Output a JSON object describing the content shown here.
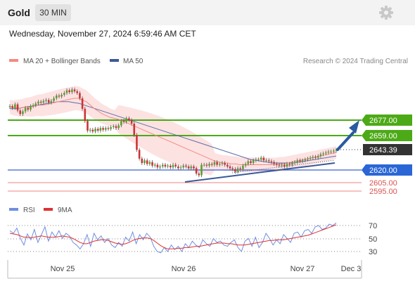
{
  "header": {
    "instrument": "Gold",
    "interval": "30 MIN",
    "datetime": "Wednesday, November 27, 2024 6:59:46 AM CET",
    "settings_icon": "gear-icon"
  },
  "legend": {
    "ma20": "MA 20 + Bollinger Bands",
    "ma50": "MA 50",
    "credit": "Research © 2024 Trading Central",
    "rsi": "RSI",
    "ma9": "9MA"
  },
  "colors": {
    "ma20": "#f28b82",
    "band_fill": "#fde2e2",
    "ma50": "#5b6fa8",
    "resistance": "#4caa16",
    "support_blue": "#3a5fcd",
    "support_red": "#f08080",
    "current": "#333333",
    "arrow": "#2a5aa0",
    "rsi": "#6f8fe0",
    "ma9": "#e03030"
  },
  "chart_data": [
    {
      "type": "candlestick",
      "title": "Gold 30 MIN",
      "ylim": [
        2588,
        2695
      ],
      "x_labels": [
        "Nov 25",
        "Nov 26",
        "Nov 27",
        "Dec 3"
      ],
      "levels": [
        {
          "value": 2677.0,
          "label": "2677.00",
          "kind": "resistance"
        },
        {
          "value": 2659.0,
          "label": "2659.00",
          "kind": "resistance"
        },
        {
          "value": 2643.39,
          "label": "2643.39",
          "kind": "current"
        },
        {
          "value": 2620.0,
          "label": "2620.00",
          "kind": "support"
        },
        {
          "value": 2605.0,
          "label": "2605.00",
          "kind": "support_minor"
        },
        {
          "value": 2595.0,
          "label": "2595.00",
          "kind": "support_minor"
        }
      ],
      "close": [
        2693,
        2691,
        2695,
        2688,
        2684,
        2687,
        2691,
        2689,
        2693,
        2694,
        2696,
        2698,
        2697,
        2699,
        2700,
        2697,
        2699,
        2702,
        2705,
        2704,
        2706,
        2708,
        2711,
        2709,
        2712,
        2710,
        2708,
        2702,
        2690,
        2676,
        2665,
        2666,
        2664,
        2667,
        2665,
        2668,
        2666,
        2668,
        2667,
        2669,
        2670,
        2668,
        2671,
        2676,
        2675,
        2679,
        2677,
        2673,
        2660,
        2643,
        2633,
        2628,
        2631,
        2627,
        2629,
        2625,
        2626,
        2623,
        2624,
        2626,
        2624,
        2625,
        2623,
        2626,
        2624,
        2622,
        2623,
        2625,
        2624,
        2622,
        2624,
        2622,
        2616,
        2614,
        2626,
        2626,
        2625,
        2627,
        2626,
        2629,
        2626,
        2627,
        2628,
        2626,
        2624,
        2622,
        2621,
        2618,
        2622,
        2621,
        2625,
        2627,
        2630,
        2628,
        2631,
        2632,
        2632,
        2634,
        2631,
        2631,
        2630,
        2629,
        2627,
        2626,
        2625,
        2626,
        2624,
        2627,
        2626,
        2628,
        2629,
        2631,
        2630,
        2631,
        2632,
        2633,
        2634,
        2635,
        2634,
        2636,
        2638,
        2639,
        2640,
        2641,
        2641,
        2642,
        2643
      ],
      "ma20": [
        2692,
        2691,
        2691,
        2691,
        2692,
        2692,
        2693,
        2694,
        2694,
        2695,
        2696,
        2697,
        2698,
        2699,
        2700,
        2701,
        2702,
        2702,
        2700,
        2698,
        2694,
        2690,
        2687,
        2684,
        2682,
        2680,
        2679,
        2678,
        2676,
        2674,
        2672,
        2670,
        2668,
        2666,
        2664,
        2662,
        2660,
        2658,
        2656,
        2654,
        2652,
        2650,
        2648,
        2646,
        2644,
        2642,
        2640,
        2638,
        2636,
        2634,
        2632,
        2630,
        2629,
        2628,
        2628,
        2627,
        2627,
        2626,
        2626,
        2626,
        2626,
        2626,
        2626,
        2626,
        2626,
        2626,
        2626,
        2627,
        2627,
        2628,
        2629,
        2630,
        2631,
        2632,
        2633,
        2634,
        2635,
        2636,
        2637,
        2638,
        2639,
        2640
      ],
      "ma50": [
        2690,
        2690,
        2691,
        2692,
        2693,
        2694,
        2695,
        2696,
        2697,
        2698,
        2698,
        2698,
        2697,
        2696,
        2694,
        2692,
        2690,
        2688,
        2686,
        2684,
        2682,
        2680,
        2678,
        2676,
        2674,
        2672,
        2670,
        2668,
        2666,
        2664,
        2662,
        2660,
        2658,
        2656,
        2654,
        2652,
        2650,
        2648,
        2646,
        2644,
        2642,
        2640,
        2638,
        2636,
        2634,
        2632,
        2631,
        2630,
        2629,
        2628,
        2628,
        2628,
        2628,
        2628,
        2629,
        2630,
        2631,
        2632,
        2633,
        2634,
        2635,
        2636
      ]
    },
    {
      "type": "line",
      "title": "RSI",
      "ylim": [
        20,
        80
      ],
      "ticks": [
        30,
        50,
        70
      ],
      "series": [
        {
          "name": "RSI",
          "values": [
            62,
            58,
            66,
            50,
            40,
            57,
            48,
            64,
            44,
            56,
            68,
            46,
            60,
            52,
            62,
            50,
            58,
            54,
            44,
            40,
            34,
            42,
            56,
            38,
            58,
            48,
            54,
            44,
            50,
            40,
            36,
            44,
            38,
            52,
            46,
            60,
            42,
            56,
            48,
            58,
            52,
            38,
            30,
            28,
            36,
            30,
            40,
            33,
            38,
            30,
            42,
            36,
            46,
            40,
            36,
            48,
            42,
            38,
            50,
            44,
            46,
            40,
            38,
            44,
            48,
            36,
            30,
            46,
            50,
            38,
            52,
            36,
            44,
            58,
            50,
            40,
            48,
            42,
            56,
            50,
            44,
            58,
            60,
            52,
            62,
            64,
            58,
            68,
            70,
            64,
            66,
            72,
            70,
            74
          ]
        },
        {
          "name": "9MA",
          "values": [
            58,
            57,
            56,
            54,
            52,
            52,
            51,
            52,
            53,
            54,
            53,
            52,
            52,
            52,
            53,
            54,
            53,
            52,
            50,
            47,
            44,
            42,
            42,
            44,
            46,
            47,
            48,
            48,
            47,
            45,
            43,
            42,
            41,
            42,
            44,
            47,
            49,
            50,
            51,
            51,
            50,
            47,
            43,
            39,
            36,
            34,
            34,
            34,
            35,
            35,
            36,
            36,
            37,
            38,
            38,
            39,
            40,
            41,
            42,
            43,
            43,
            43,
            42,
            42,
            41,
            40,
            40,
            40,
            41,
            42,
            43,
            44,
            45,
            46,
            47,
            47,
            48,
            48,
            48,
            49,
            50,
            51,
            52,
            53,
            54,
            55,
            57,
            59,
            61,
            63,
            65,
            67,
            69,
            71
          ]
        }
      ]
    }
  ]
}
